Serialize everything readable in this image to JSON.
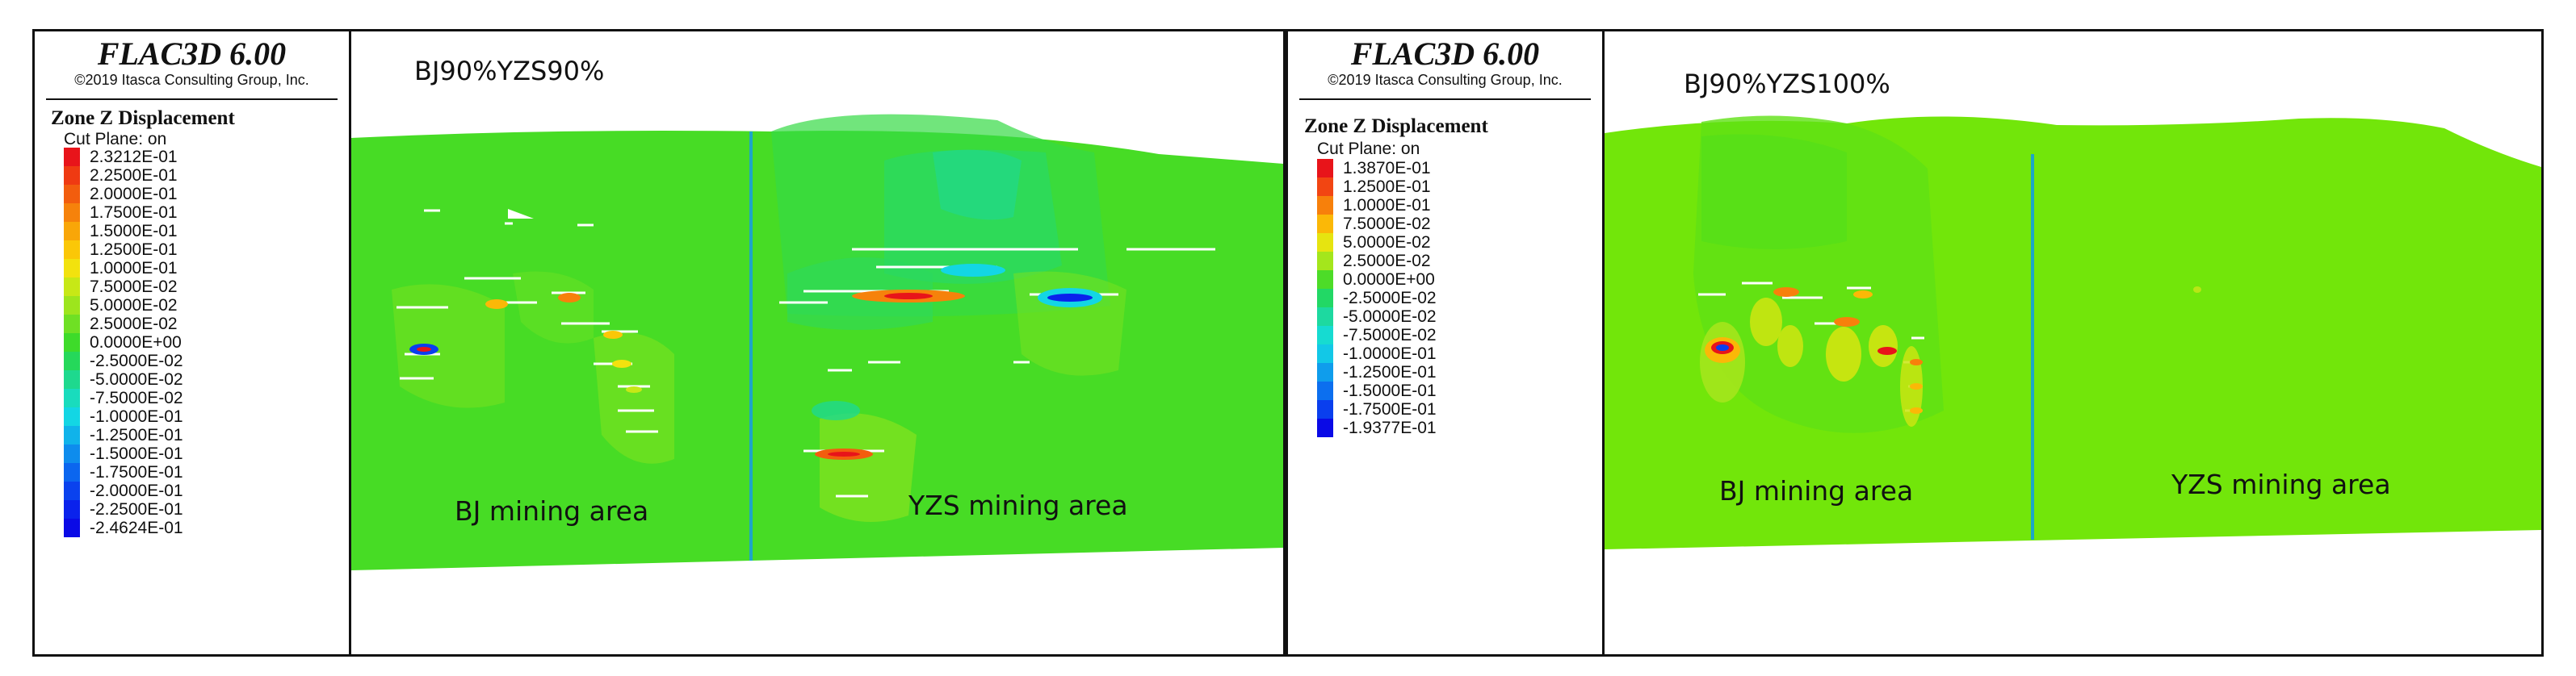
{
  "panels": [
    {
      "app_title": "FLAC3D 6.00",
      "copyright": "©2019 Itasca Consulting Group, Inc.",
      "quantity": "Zone Z Displacement",
      "cut_plane": "Cut Plane: on",
      "case_label": "BJ90%YZS90%",
      "area_labels": [
        "BJ mining area",
        "YZS mining area"
      ],
      "legend": [
        {
          "label": "2.3212E-01",
          "color": "#e8141a"
        },
        {
          "label": "2.2500E-01",
          "color": "#ef3a12"
        },
        {
          "label": "2.0000E-01",
          "color": "#f25d0e"
        },
        {
          "label": "1.7500E-01",
          "color": "#f6820b"
        },
        {
          "label": "1.5000E-01",
          "color": "#f9a608"
        },
        {
          "label": "1.2500E-01",
          "color": "#fbc707"
        },
        {
          "label": "1.0000E-01",
          "color": "#f2e20e"
        },
        {
          "label": "7.5000E-02",
          "color": "#c7e816"
        },
        {
          "label": "5.0000E-02",
          "color": "#9de51d"
        },
        {
          "label": "2.5000E-02",
          "color": "#6fe024"
        },
        {
          "label": "0.0000E+00",
          "color": "#3edb2a"
        },
        {
          "label": "-2.5000E-02",
          "color": "#25d85a"
        },
        {
          "label": "-5.0000E-02",
          "color": "#1ed98e"
        },
        {
          "label": "-7.5000E-02",
          "color": "#19dcbd"
        },
        {
          "label": "-1.0000E-01",
          "color": "#13d6e4"
        },
        {
          "label": "-1.2500E-01",
          "color": "#10b3ea"
        },
        {
          "label": "-1.5000E-01",
          "color": "#0e8ced"
        },
        {
          "label": "-1.7500E-01",
          "color": "#0b66ef"
        },
        {
          "label": "-2.0000E-01",
          "color": "#0a42ee"
        },
        {
          "label": "-2.2500E-01",
          "color": "#0a22ec"
        },
        {
          "label": "-2.4624E-01",
          "color": "#0a0ae6"
        }
      ],
      "field_color": "#47dc25",
      "divider_color": "#1da6c8"
    },
    {
      "app_title": "FLAC3D 6.00",
      "copyright": "©2019 Itasca Consulting Group, Inc.",
      "quantity": "Zone Z Displacement",
      "cut_plane": "Cut Plane: on",
      "case_label": "BJ90%YZS100%",
      "area_labels": [
        "BJ mining area",
        "YZS mining area"
      ],
      "legend": [
        {
          "label": "1.3870E-01",
          "color": "#e8141a"
        },
        {
          "label": "1.2500E-01",
          "color": "#f24512"
        },
        {
          "label": "1.0000E-01",
          "color": "#f7800b"
        },
        {
          "label": "7.5000E-02",
          "color": "#fbb807"
        },
        {
          "label": "5.0000E-02",
          "color": "#e6e410"
        },
        {
          "label": "2.5000E-02",
          "color": "#a4e61c"
        },
        {
          "label": "0.0000E+00",
          "color": "#4ddc28"
        },
        {
          "label": "-2.5000E-02",
          "color": "#22d865"
        },
        {
          "label": "-5.0000E-02",
          "color": "#1dd9a0"
        },
        {
          "label": "-7.5000E-02",
          "color": "#16dbd1"
        },
        {
          "label": "-1.0000E-01",
          "color": "#12c8e7"
        },
        {
          "label": "-1.2500E-01",
          "color": "#0f9dec"
        },
        {
          "label": "-1.5000E-01",
          "color": "#0c6fef"
        },
        {
          "label": "-1.7500E-01",
          "color": "#0a3fee"
        },
        {
          "label": "-1.9377E-01",
          "color": "#0a0ae6"
        }
      ],
      "field_color": "#72e60a",
      "divider_color": "#1da6c8"
    }
  ]
}
